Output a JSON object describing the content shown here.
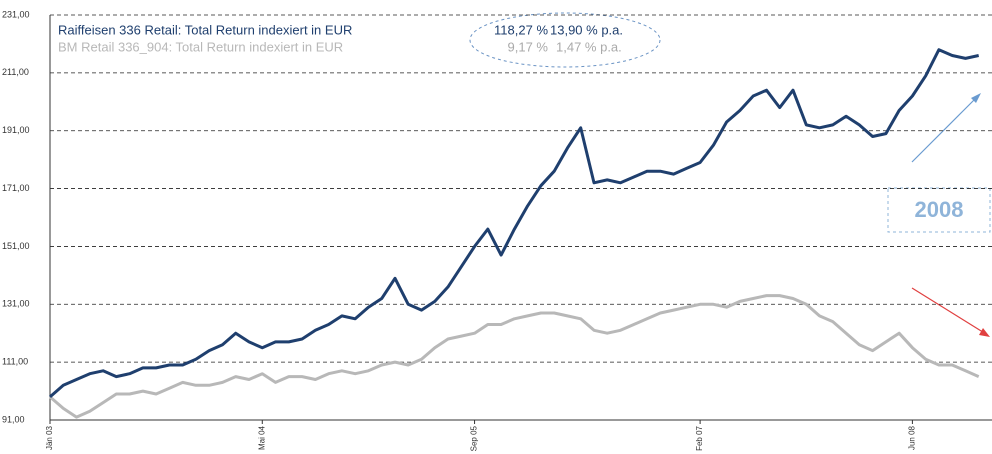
{
  "chart_data": {
    "type": "line",
    "x": [
      "2003-01",
      "2003-02",
      "2003-03",
      "2003-04",
      "2003-05",
      "2003-06",
      "2003-07",
      "2003-08",
      "2003-09",
      "2003-10",
      "2003-11",
      "2003-12",
      "2004-01",
      "2004-02",
      "2004-03",
      "2004-04",
      "2004-05",
      "2004-06",
      "2004-07",
      "2004-08",
      "2004-09",
      "2004-10",
      "2004-11",
      "2004-12",
      "2005-01",
      "2005-02",
      "2005-03",
      "2005-04",
      "2005-05",
      "2005-06",
      "2005-07",
      "2005-08",
      "2005-09",
      "2005-10",
      "2005-11",
      "2005-12",
      "2006-01",
      "2006-02",
      "2006-03",
      "2006-04",
      "2006-05",
      "2006-06",
      "2006-07",
      "2006-08",
      "2006-09",
      "2006-10",
      "2006-11",
      "2006-12",
      "2007-01",
      "2007-02",
      "2007-03",
      "2007-04",
      "2007-05",
      "2007-06",
      "2007-07",
      "2007-08",
      "2007-09",
      "2007-10",
      "2007-11",
      "2007-12",
      "2008-01",
      "2008-02",
      "2008-03",
      "2008-04",
      "2008-05",
      "2008-06",
      "2008-07",
      "2008-08",
      "2008-09",
      "2008-10",
      "2008-11"
    ],
    "series": [
      {
        "name": "Raiffeisen 336 Retail: Total Return indexiert in EUR",
        "color": "#1f3f6e",
        "values": [
          99,
          103,
          105,
          107,
          108,
          106,
          107,
          109,
          109,
          110,
          110,
          112,
          115,
          117,
          121,
          118,
          116,
          118,
          118,
          119,
          122,
          124,
          127,
          126,
          130,
          133,
          140,
          131,
          129,
          132,
          137,
          144,
          151,
          157,
          148,
          157,
          165,
          172,
          177,
          185,
          192,
          173,
          174,
          173,
          175,
          177,
          177,
          176,
          178,
          180,
          186,
          194,
          198,
          203,
          205,
          199,
          205,
          193,
          192,
          193,
          196,
          193,
          189,
          190,
          198,
          203,
          210,
          219,
          217,
          216,
          217
        ]
      },
      {
        "name": "BM Retail 336_904: Total Return indexiert in EUR",
        "color": "#b8b8b8",
        "values": [
          99,
          95,
          92,
          94,
          97,
          100,
          100,
          101,
          100,
          102,
          104,
          103,
          103,
          104,
          106,
          105,
          107,
          104,
          106,
          106,
          105,
          107,
          108,
          107,
          108,
          110,
          111,
          110,
          112,
          116,
          119,
          120,
          121,
          124,
          124,
          126,
          127,
          128,
          128,
          127,
          126,
          122,
          121,
          122,
          124,
          126,
          128,
          129,
          130,
          131,
          131,
          130,
          132,
          133,
          134,
          134,
          133,
          131,
          127,
          125,
          121,
          117,
          115,
          118,
          121,
          116,
          112,
          110,
          110,
          108,
          106
        ]
      }
    ],
    "xlim": [
      "2003-01",
      "2008-12"
    ],
    "xticks": [
      {
        "value": "2003-01",
        "label": "Jän 03"
      },
      {
        "value": "2004-05",
        "label": "Mai 04"
      },
      {
        "value": "2005-09",
        "label": "Sep 05"
      },
      {
        "value": "2007-02",
        "label": "Feb 07"
      },
      {
        "value": "2008-06",
        "label": "Jun 08"
      }
    ],
    "ylim": [
      91,
      231
    ],
    "yticks": [
      {
        "value": 91,
        "label": "91,00"
      },
      {
        "value": 111,
        "label": "111,00"
      },
      {
        "value": 131,
        "label": "131,00"
      },
      {
        "value": 151,
        "label": "151,00"
      },
      {
        "value": 171,
        "label": "171,00"
      },
      {
        "value": 191,
        "label": "191,00"
      },
      {
        "value": 211,
        "label": "211,00"
      },
      {
        "value": 231,
        "label": "231,00"
      }
    ],
    "grid": true,
    "annotations": [
      "118,27 %",
      "13,90 % p.a.",
      "9,17 %",
      "1,47 % p.a.",
      "2008"
    ]
  }
}
